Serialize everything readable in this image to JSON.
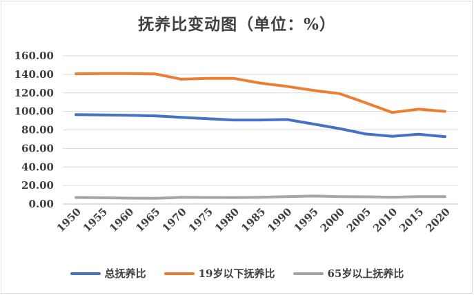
{
  "chart_data": {
    "type": "line",
    "title": "抚养比变动图（单位：%）",
    "categories": [
      "1950",
      "1955",
      "1960",
      "1965",
      "1970",
      "1975",
      "1980",
      "1985",
      "1990",
      "1995",
      "2000",
      "2005",
      "2010",
      "2015",
      "2020"
    ],
    "y_ticks": [
      "0.00",
      "20.00",
      "40.00",
      "60.00",
      "80.00",
      "100.00",
      "120.00",
      "140.00",
      "160.00"
    ],
    "ylim": [
      0,
      160
    ],
    "grid": true,
    "legend_position": "bottom",
    "series": [
      {
        "name": "总抚养比",
        "color": "#4472c4",
        "values": [
          96.5,
          96.2,
          95.8,
          95.2,
          93.6,
          92.1,
          90.7,
          90.7,
          91.2,
          86.4,
          81.4,
          75.6,
          73.1,
          75.4,
          72.7
        ]
      },
      {
        "name": "19岁以下抚养比",
        "color": "#ed7d31",
        "values": [
          140.6,
          140.8,
          140.8,
          140.5,
          134.8,
          135.6,
          135.6,
          130.5,
          127.0,
          122.7,
          119.2,
          109.2,
          98.8,
          102.4,
          100.0
        ]
      },
      {
        "name": "65岁以上抚养比",
        "color": "#a5a5a5",
        "values": [
          7.1,
          6.8,
          6.3,
          6.2,
          7.2,
          7.1,
          7.0,
          7.3,
          8.0,
          8.6,
          8.0,
          7.8,
          7.4,
          8.0,
          8.0
        ]
      }
    ]
  }
}
